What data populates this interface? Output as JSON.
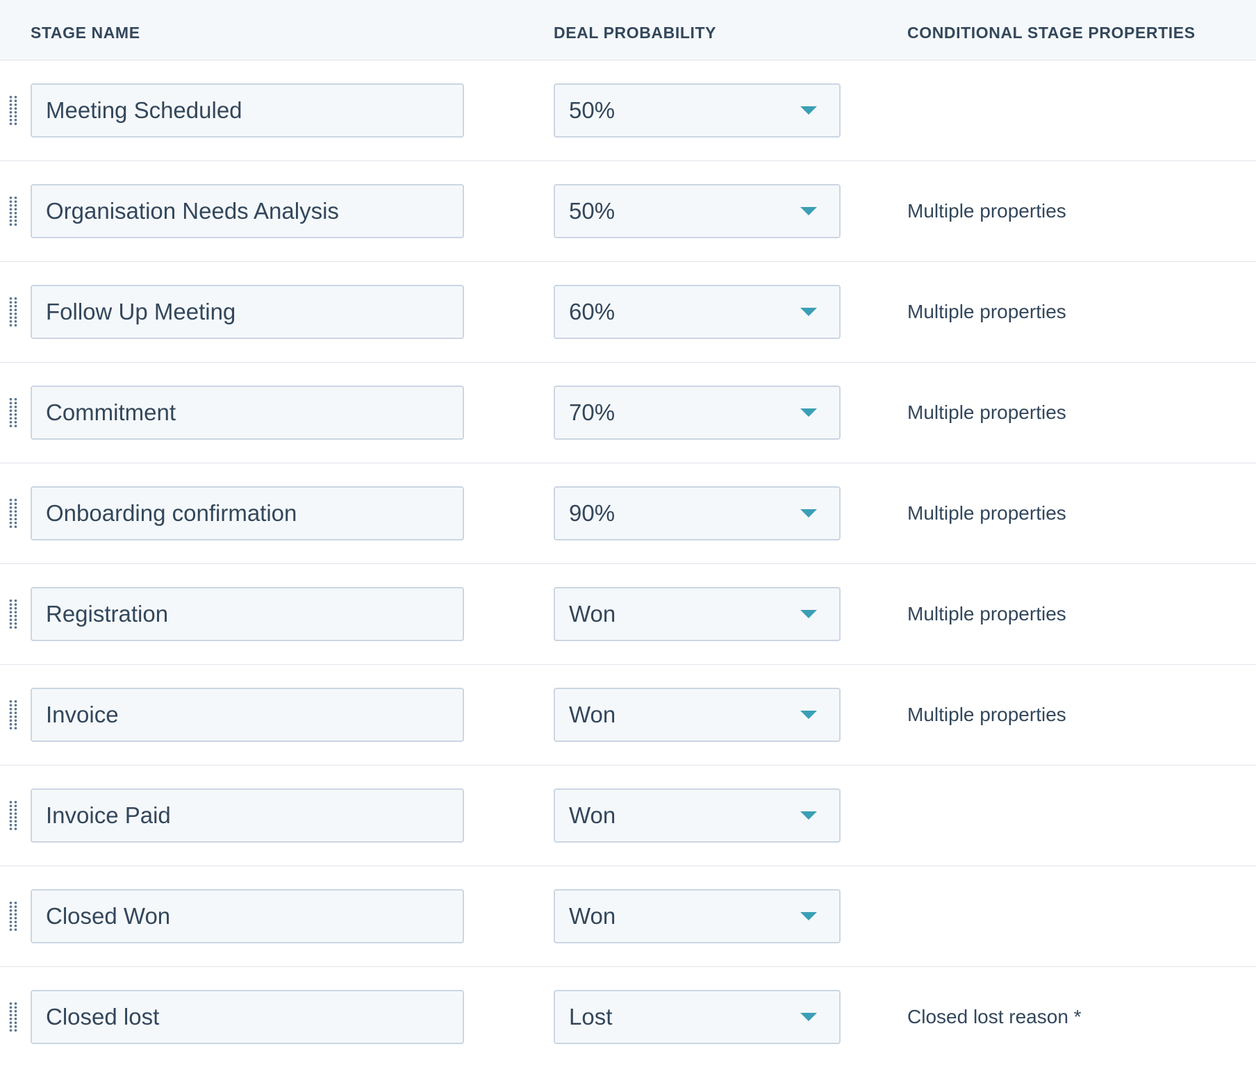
{
  "columns": {
    "stage_name": "STAGE NAME",
    "deal_probability": "DEAL PROBABILITY",
    "conditional": "CONDITIONAL STAGE PROPERTIES"
  },
  "colors": {
    "caret": "#3b9fb5",
    "text": "#33475b",
    "field_bg": "#f5f8fa",
    "field_border": "#cbd6e2"
  },
  "stages": [
    {
      "name": "Meeting Scheduled",
      "probability": "50%",
      "conditional": ""
    },
    {
      "name": "Organisation Needs Analysis",
      "probability": "50%",
      "conditional": "Multiple properties"
    },
    {
      "name": "Follow Up Meeting",
      "probability": "60%",
      "conditional": "Multiple properties"
    },
    {
      "name": "Commitment",
      "probability": "70%",
      "conditional": "Multiple properties"
    },
    {
      "name": "Onboarding confirmation",
      "probability": "90%",
      "conditional": "Multiple properties"
    },
    {
      "name": "Registration",
      "probability": "Won",
      "conditional": "Multiple properties"
    },
    {
      "name": "Invoice",
      "probability": "Won",
      "conditional": "Multiple properties"
    },
    {
      "name": "Invoice Paid",
      "probability": "Won",
      "conditional": ""
    },
    {
      "name": "Closed Won",
      "probability": "Won",
      "conditional": ""
    },
    {
      "name": "Closed lost",
      "probability": "Lost",
      "conditional": "Closed lost reason *"
    }
  ]
}
